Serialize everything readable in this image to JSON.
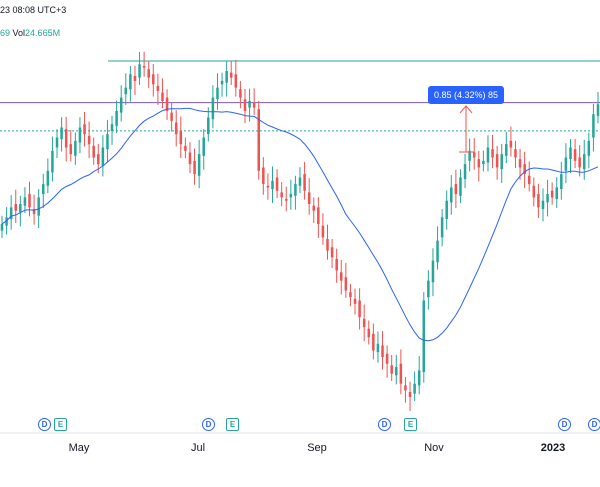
{
  "header": {
    "time_fragment": "23 08:08 UTC+3",
    "vol_value_fragment": "69",
    "vol_label": "Vol",
    "vol_value": "24.665M"
  },
  "measure_tool": {
    "label": "0.85 (4.32%) 85"
  },
  "x_axis": {
    "labels": [
      {
        "text": "May",
        "bold": false
      },
      {
        "text": "Jul",
        "bold": false
      },
      {
        "text": "Sep",
        "bold": false
      },
      {
        "text": "Nov",
        "bold": false
      },
      {
        "text": "2023",
        "bold": true
      }
    ]
  },
  "events": [
    {
      "type": "D",
      "label": "D"
    },
    {
      "type": "E",
      "label": "E"
    },
    {
      "type": "D",
      "label": "D"
    },
    {
      "type": "E",
      "label": "E"
    },
    {
      "type": "D",
      "label": "D"
    },
    {
      "type": "E",
      "label": "E"
    },
    {
      "type": "D",
      "label": "D"
    },
    {
      "type": "D",
      "label": "D"
    }
  ],
  "colors": {
    "up": "#26a69a",
    "down": "#ef5350",
    "ma": "#2962ff",
    "resistance_line": "#26a69a",
    "horizontal_purple": "#7e57c2",
    "measure_arrow": "#ef5350"
  },
  "chart_data": {
    "type": "candlestick",
    "x_axis_type": "time",
    "key_levels": {
      "resistance_top": 20.9,
      "purple_line": 19.65,
      "dashed_line": 18.8
    },
    "ma_line": {
      "name": "",
      "points": []
    },
    "closes": [
      16.0,
      16.2,
      16.5,
      16.4,
      16.6,
      16.8,
      16.5,
      16.3,
      16.8,
      17.2,
      17.6,
      18.2,
      18.6,
      18.9,
      18.3,
      18.1,
      18.5,
      18.9,
      18.7,
      18.4,
      18.0,
      17.8,
      18.3,
      18.7,
      19.0,
      19.4,
      19.8,
      20.1,
      20.5,
      20.3,
      20.8,
      20.7,
      20.4,
      20.2,
      20.0,
      19.7,
      19.4,
      19.1,
      18.7,
      18.4,
      18.2,
      17.8,
      17.5,
      18.1,
      18.6,
      19.2,
      19.8,
      20.1,
      20.3,
      20.6,
      20.4,
      20.1,
      19.8,
      19.4,
      19.7,
      19.5,
      17.6,
      17.2,
      17.1,
      17.3,
      17.0,
      16.8,
      16.7,
      16.9,
      17.2,
      17.4,
      17.0,
      16.6,
      16.4,
      16.0,
      15.6,
      15.2,
      15.0,
      14.6,
      14.3,
      14.0,
      13.8,
      13.6,
      13.2,
      12.9,
      12.6,
      12.2,
      12.4,
      12.0,
      11.8,
      11.5,
      11.7,
      11.2,
      11.0,
      10.8,
      11.2,
      11.6,
      13.7,
      14.3,
      14.9,
      15.5,
      16.2,
      16.7,
      17.1,
      16.9,
      17.4,
      17.8,
      18.2,
      18.0,
      17.7,
      17.9,
      18.3,
      18.0,
      17.7,
      18.1,
      18.4,
      18.3,
      18.0,
      17.7,
      17.5,
      17.2,
      16.8,
      16.5,
      16.7,
      16.9,
      16.8,
      17.1,
      17.5,
      18.0,
      18.3,
      17.9,
      17.7,
      18.1,
      18.5,
      19.3,
      19.6
    ]
  }
}
